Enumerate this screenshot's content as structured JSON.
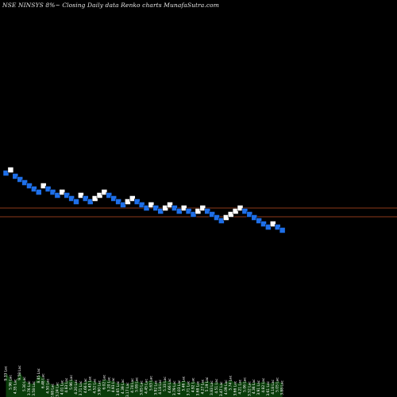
{
  "chart_data": {
    "type": "renko",
    "title": "NSE NINSYS 8%~  Closing Daily data  Renko  charts MunafaSutra.com",
    "colors": {
      "background": "#000000",
      "up": "#ffffff",
      "down": "#1e6fe8",
      "line": "#8b3a1a",
      "volume": "#0a3d0a"
    },
    "horizontal_levels": [
      262,
      273
    ],
    "bricks": [
      {
        "x": 0,
        "y": 218,
        "dir": "down"
      },
      {
        "x": 1,
        "y": 214,
        "dir": "up"
      },
      {
        "x": 2,
        "y": 222,
        "dir": "down"
      },
      {
        "x": 3,
        "y": 226,
        "dir": "down"
      },
      {
        "x": 4,
        "y": 230,
        "dir": "down"
      },
      {
        "x": 5,
        "y": 234,
        "dir": "down"
      },
      {
        "x": 6,
        "y": 238,
        "dir": "down"
      },
      {
        "x": 7,
        "y": 242,
        "dir": "down"
      },
      {
        "x": 8,
        "y": 234,
        "dir": "up"
      },
      {
        "x": 9,
        "y": 238,
        "dir": "down"
      },
      {
        "x": 10,
        "y": 242,
        "dir": "down"
      },
      {
        "x": 11,
        "y": 246,
        "dir": "down"
      },
      {
        "x": 12,
        "y": 242,
        "dir": "up"
      },
      {
        "x": 13,
        "y": 246,
        "dir": "down"
      },
      {
        "x": 14,
        "y": 250,
        "dir": "down"
      },
      {
        "x": 15,
        "y": 254,
        "dir": "down"
      },
      {
        "x": 16,
        "y": 246,
        "dir": "up"
      },
      {
        "x": 17,
        "y": 250,
        "dir": "down"
      },
      {
        "x": 18,
        "y": 254,
        "dir": "down"
      },
      {
        "x": 19,
        "y": 250,
        "dir": "up"
      },
      {
        "x": 20,
        "y": 246,
        "dir": "up"
      },
      {
        "x": 21,
        "y": 242,
        "dir": "up"
      },
      {
        "x": 22,
        "y": 246,
        "dir": "down"
      },
      {
        "x": 23,
        "y": 250,
        "dir": "down"
      },
      {
        "x": 24,
        "y": 254,
        "dir": "down"
      },
      {
        "x": 25,
        "y": 258,
        "dir": "down"
      },
      {
        "x": 26,
        "y": 254,
        "dir": "up"
      },
      {
        "x": 27,
        "y": 250,
        "dir": "up"
      },
      {
        "x": 28,
        "y": 254,
        "dir": "down"
      },
      {
        "x": 29,
        "y": 258,
        "dir": "down"
      },
      {
        "x": 30,
        "y": 262,
        "dir": "down"
      },
      {
        "x": 31,
        "y": 258,
        "dir": "up"
      },
      {
        "x": 32,
        "y": 262,
        "dir": "down"
      },
      {
        "x": 33,
        "y": 266,
        "dir": "down"
      },
      {
        "x": 34,
        "y": 262,
        "dir": "up"
      },
      {
        "x": 35,
        "y": 258,
        "dir": "up"
      },
      {
        "x": 36,
        "y": 262,
        "dir": "down"
      },
      {
        "x": 37,
        "y": 266,
        "dir": "down"
      },
      {
        "x": 38,
        "y": 262,
        "dir": "up"
      },
      {
        "x": 39,
        "y": 266,
        "dir": "down"
      },
      {
        "x": 40,
        "y": 270,
        "dir": "down"
      },
      {
        "x": 41,
        "y": 266,
        "dir": "up"
      },
      {
        "x": 42,
        "y": 262,
        "dir": "up"
      },
      {
        "x": 43,
        "y": 266,
        "dir": "down"
      },
      {
        "x": 44,
        "y": 270,
        "dir": "down"
      },
      {
        "x": 45,
        "y": 274,
        "dir": "down"
      },
      {
        "x": 46,
        "y": 278,
        "dir": "down"
      },
      {
        "x": 47,
        "y": 274,
        "dir": "up"
      },
      {
        "x": 48,
        "y": 270,
        "dir": "up"
      },
      {
        "x": 49,
        "y": 266,
        "dir": "up"
      },
      {
        "x": 50,
        "y": 262,
        "dir": "up"
      },
      {
        "x": 51,
        "y": 266,
        "dir": "down"
      },
      {
        "x": 52,
        "y": 270,
        "dir": "down"
      },
      {
        "x": 53,
        "y": 274,
        "dir": "down"
      },
      {
        "x": 54,
        "y": 278,
        "dir": "down"
      },
      {
        "x": 55,
        "y": 282,
        "dir": "down"
      },
      {
        "x": 56,
        "y": 286,
        "dir": "down"
      },
      {
        "x": 57,
        "y": 282,
        "dir": "up"
      },
      {
        "x": 58,
        "y": 286,
        "dir": "down"
      },
      {
        "x": 59,
        "y": 290,
        "dir": "down"
      }
    ],
    "volume_labels": [
      "9.33 Lac",
      "5.96 Lac",
      "4.35 Lac",
      "9.58 Lac",
      "5.30 Lac",
      "3.76 Lac",
      "3.58 Lac",
      "8.45 Lac",
      "6.48 Lac",
      "4.50 Lac",
      "2.68 Lac",
      "3.24 Lac",
      "4.01 Lac",
      "4.83 Lac",
      "5.96 Lac",
      "4.20 Lac",
      "3.71 Lac",
      "4.66 Lac",
      "5.45 Lac",
      "4.52 Lac",
      "3.90 Lac",
      "6.02 Lac",
      "5.20 Lac",
      "4.93 Lac",
      "3.65 Lac",
      "4.39 Lac",
      "3.17 Lac",
      "4.74 Lac",
      "5.08 Lac",
      "3.85 Lac",
      "4.45 Lac",
      "5.63 Lac",
      "3.92 Lac",
      "4.18 Lac",
      "5.33 Lac",
      "4.66 Lac",
      "3.79 Lac",
      "4.03 Lac",
      "5.46 Lac",
      "3.71 Lac",
      "4.92 Lac",
      "3.68 Lac",
      "4.27 Lac",
      "5.19 Lac",
      "3.83 Lac",
      "4.51 Lac",
      "3.47 Lac",
      "4.09 Lac",
      "5.74 Lac",
      "3.66 Lac",
      "4.21 Lac",
      "5.06 Lac",
      "3.52 Lac",
      "4.36 Lac",
      "3.91 Lac",
      "4.82 Lac",
      "3.61 Lac",
      "4.18 Lac",
      "5.05 Lac",
      "3.88 Lac"
    ],
    "volume_values": [
      9.33,
      5.96,
      4.35,
      9.58,
      5.3,
      3.76,
      3.58,
      8.45,
      6.48,
      4.5,
      2.68,
      3.24,
      4.01,
      4.83,
      5.96,
      4.2,
      3.71,
      4.66,
      5.45,
      4.52,
      3.9,
      6.02,
      5.2,
      4.93,
      3.65,
      4.39,
      3.17,
      4.74,
      5.08,
      3.85,
      4.45,
      5.63,
      3.92,
      4.18,
      5.33,
      4.66,
      3.79,
      4.03,
      5.46,
      3.71,
      4.92,
      3.68,
      4.27,
      5.19,
      3.83,
      4.51,
      3.47,
      4.09,
      5.74,
      3.66,
      4.21,
      5.06,
      3.52,
      4.36,
      3.91,
      4.82,
      3.61,
      4.18,
      5.05,
      3.88
    ]
  }
}
